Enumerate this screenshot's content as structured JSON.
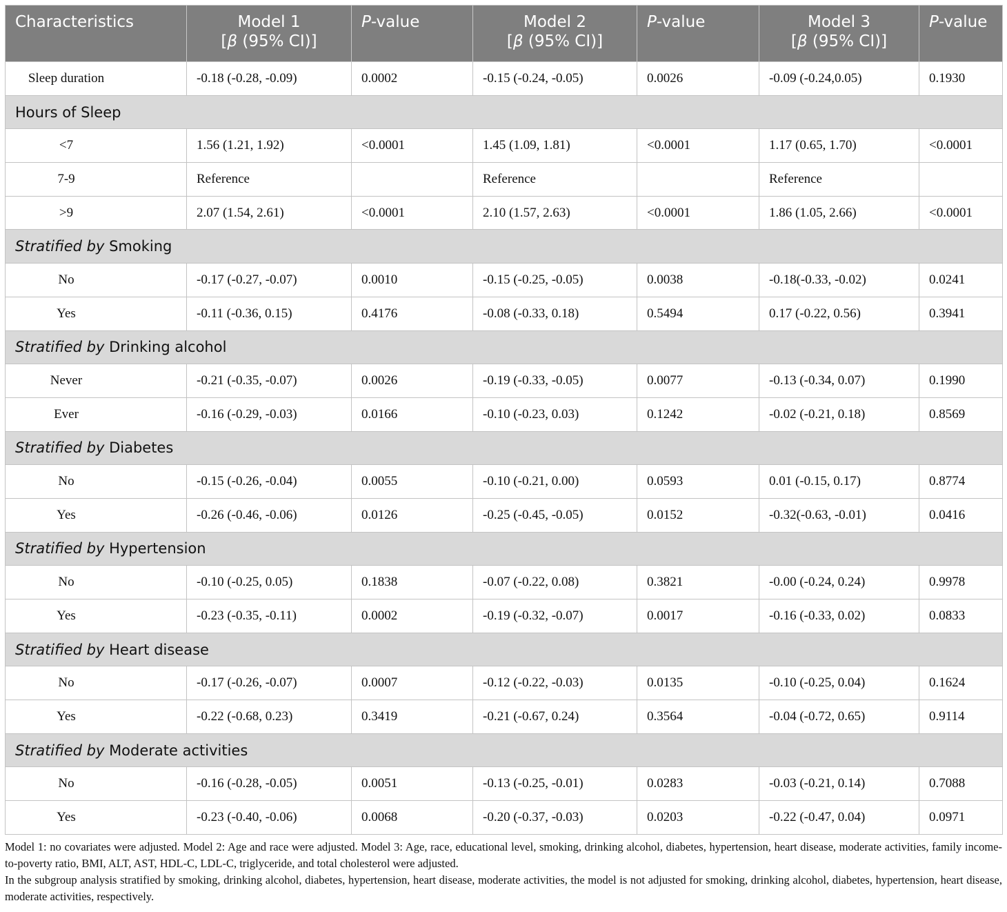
{
  "table": {
    "columns": [
      {
        "text": "Characteristics"
      },
      {
        "line1": "Model 1",
        "line2": {
          "pre": "[",
          "italic": "β",
          "post": " (95% CI)]"
        }
      },
      {
        "italic": "P",
        "text": "-value"
      },
      {
        "line1": "Model 2",
        "line2": {
          "pre": "[",
          "italic": "β",
          "post": " (95% CI)]"
        }
      },
      {
        "italic": "P",
        "text": "-value"
      },
      {
        "line1": "Model 3",
        "line2": {
          "pre": "[",
          "italic": "β",
          "post": " (95% CI)]"
        }
      },
      {
        "italic": "P",
        "text": "-value"
      }
    ],
    "rows": [
      {
        "cells": [
          "Sleep duration",
          "-0.18 (-0.28, -0.09)",
          "0.0002",
          "-0.15 (-0.24, -0.05)",
          "0.0026",
          "-0.09 (-0.24,0.05)",
          "0.1930"
        ]
      },
      {
        "group": {
          "text": "Hours of Sleep"
        }
      },
      {
        "cells": [
          "<7",
          "1.56 (1.21, 1.92)",
          "<0.0001",
          "1.45 (1.09, 1.81)",
          "<0.0001",
          "1.17 (0.65, 1.70)",
          "<0.0001"
        ]
      },
      {
        "cells": [
          "7-9",
          "Reference",
          null,
          "Reference",
          null,
          "Reference",
          null
        ]
      },
      {
        "cells": [
          ">9",
          "2.07 (1.54, 2.61)",
          "<0.0001",
          "2.10 (1.57, 2.63)",
          "<0.0001",
          "1.86 (1.05, 2.66)",
          "<0.0001"
        ]
      },
      {
        "group": {
          "italic": "Stratified by",
          "text": " Smoking"
        }
      },
      {
        "cells": [
          "No",
          "-0.17 (-0.27, -0.07)",
          "0.0010",
          "-0.15 (-0.25, -0.05)",
          "0.0038",
          "-0.18(-0.33, -0.02)",
          "0.0241"
        ]
      },
      {
        "cells": [
          "Yes",
          "-0.11 (-0.36, 0.15)",
          "0.4176",
          "-0.08 (-0.33, 0.18)",
          "0.5494",
          "0.17 (-0.22, 0.56)",
          "0.3941"
        ]
      },
      {
        "group": {
          "italic": "Stratified by",
          "text": " Drinking alcohol"
        }
      },
      {
        "cells": [
          "Never",
          "-0.21 (-0.35, -0.07)",
          "0.0026",
          "-0.19 (-0.33, -0.05)",
          "0.0077",
          "-0.13 (-0.34, 0.07)",
          "0.1990"
        ]
      },
      {
        "cells": [
          "Ever",
          "-0.16 (-0.29, -0.03)",
          "0.0166",
          "-0.10 (-0.23, 0.03)",
          "0.1242",
          "-0.02 (-0.21, 0.18)",
          "0.8569"
        ]
      },
      {
        "group": {
          "italic": "Stratified by",
          "text": " Diabetes"
        }
      },
      {
        "cells": [
          "No",
          "-0.15 (-0.26, -0.04)",
          "0.0055",
          "-0.10 (-0.21, 0.00)",
          "0.0593",
          "0.01 (-0.15, 0.17)",
          "0.8774"
        ]
      },
      {
        "cells": [
          "Yes",
          "-0.26 (-0.46, -0.06)",
          "0.0126",
          "-0.25 (-0.45, -0.05)",
          "0.0152",
          "-0.32(-0.63, -0.01)",
          "0.0416"
        ]
      },
      {
        "group": {
          "italic": "Stratified by",
          "text": " Hypertension"
        }
      },
      {
        "cells": [
          "No",
          "-0.10 (-0.25, 0.05)",
          "0.1838",
          "-0.07 (-0.22, 0.08)",
          "0.3821",
          "-0.00 (-0.24, 0.24)",
          "0.9978"
        ]
      },
      {
        "cells": [
          "Yes",
          "-0.23 (-0.35, -0.11)",
          "0.0002",
          "-0.19 (-0.32, -0.07)",
          "0.0017",
          "-0.16 (-0.33, 0.02)",
          "0.0833"
        ]
      },
      {
        "group": {
          "italic": "Stratified by",
          "text": " Heart disease"
        }
      },
      {
        "cells": [
          "No",
          "-0.17 (-0.26, -0.07)",
          "0.0007",
          "-0.12 (-0.22, -0.03)",
          "0.0135",
          "-0.10 (-0.25, 0.04)",
          "0.1624"
        ]
      },
      {
        "cells": [
          "Yes",
          "-0.22 (-0.68, 0.23)",
          "0.3419",
          "-0.21 (-0.67, 0.24)",
          "0.3564",
          "-0.04 (-0.72, 0.65)",
          "0.9114"
        ]
      },
      {
        "group": {
          "italic": "Stratified by",
          "text": " Moderate activities"
        }
      },
      {
        "cells": [
          "No",
          "-0.16 (-0.28, -0.05)",
          "0.0051",
          "-0.13 (-0.25, -0.01)",
          "0.0283",
          "-0.03 (-0.21, 0.14)",
          "0.7088"
        ]
      },
      {
        "cells": [
          "Yes",
          "-0.23 (-0.40, -0.06)",
          "0.0068",
          "-0.20 (-0.37, -0.03)",
          "0.0203",
          "-0.22 (-0.47, 0.04)",
          "0.0971"
        ]
      }
    ]
  },
  "notes": [
    "Model 1: no covariates were adjusted. Model 2: Age and race were adjusted. Model 3: Age, race, educational level, smoking, drinking alcohol, diabetes, hypertension, heart disease, moderate activities, family income-to-poverty ratio, BMI, ALT, AST, HDL-C, LDL-C, triglyceride, and total cholesterol were adjusted.",
    "In the subgroup analysis stratified by smoking, drinking alcohol, diabetes, hypertension, heart disease, moderate activities, the model is not adjusted for smoking, drinking alcohol, diabetes, hypertension, heart disease, moderate activities, respectively."
  ]
}
